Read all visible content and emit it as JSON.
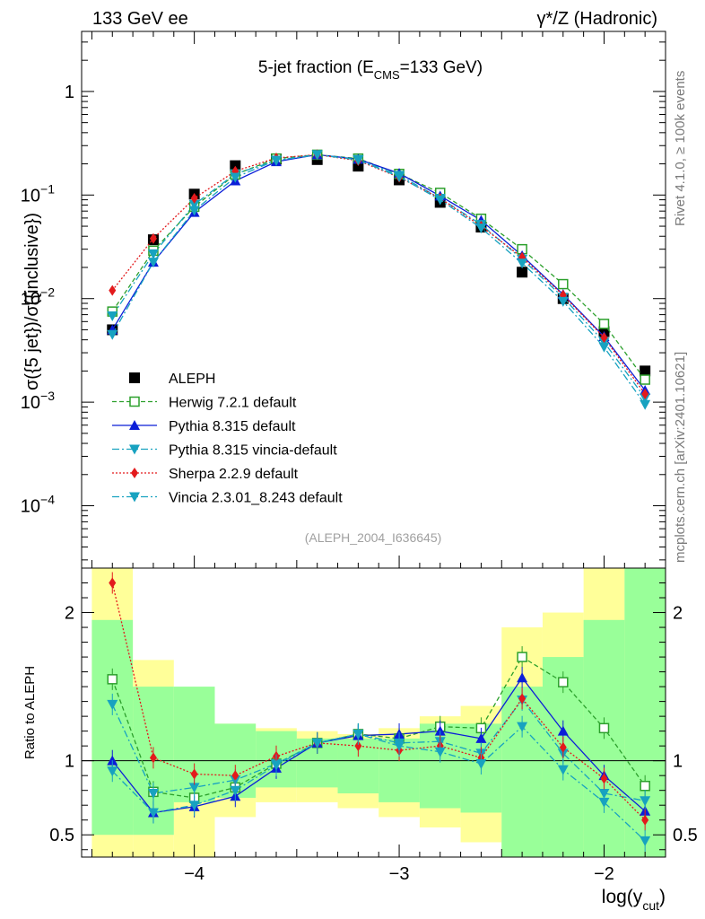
{
  "header": {
    "left": "133 GeV ee",
    "right": "γ*/Z (Hadronic)"
  },
  "side_labels": {
    "rivet": "Rivet 4.1.0, ≥ 100k events",
    "site": "mcplots.cern.ch [arXiv:2401.10621]"
  },
  "chart_data": {
    "type": "line",
    "title_prefix": "5-jet fraction (E",
    "title_sub": "CMS",
    "title_suffix": "=133 GeV)",
    "ylabel": "σ({5 jet})/σ({inclusive})",
    "ratio_ylabel": "Ratio to ALEPH",
    "xlabel_main": "log(y",
    "xlabel_sub": "cut",
    "xlabel_close": ")",
    "analysis_tag": "(ALEPH_2004_I636645)",
    "x": [
      -4.4,
      -4.2,
      -4.0,
      -3.8,
      -3.6,
      -3.4,
      -3.2,
      -3.0,
      -2.8,
      -2.6,
      -2.4,
      -2.2,
      -2.0,
      -1.8
    ],
    "x_bins": [
      -4.5,
      -4.3,
      -4.1,
      -3.9,
      -3.7,
      -3.5,
      -3.3,
      -3.1,
      -2.9,
      -2.7,
      -2.5,
      -2.3,
      -2.1,
      -1.9,
      -1.7
    ],
    "xlim": [
      -4.55,
      -1.7
    ],
    "xticks": [
      -4,
      -3,
      -2
    ],
    "xtick_labels": [
      "−4",
      "−3",
      "−2"
    ],
    "ylim_log": [
      2.5e-05,
      3.8
    ],
    "yticks": [
      {
        "value": 1,
        "base": "1",
        "exp": ""
      },
      {
        "value": 0.1,
        "base": "10",
        "exp": "−1"
      },
      {
        "value": 0.01,
        "base": "10",
        "exp": "−2"
      },
      {
        "value": 0.001,
        "base": "10",
        "exp": "−3"
      },
      {
        "value": 0.0001,
        "base": "10",
        "exp": "−4"
      }
    ],
    "ratio_ylim": [
      0.35,
      2.3
    ],
    "ratio_yticks": [
      0.5,
      1,
      2
    ],
    "ratio_ytick_labels": [
      "0.5",
      "1",
      "2"
    ],
    "data_series": {
      "name": "ALEPH",
      "values": [
        0.005,
        0.037,
        0.102,
        0.192,
        0.222,
        0.22,
        0.19,
        0.14,
        0.085,
        0.049,
        0.018,
        0.01,
        0.0048,
        0.002
      ]
    },
    "band_inner": [
      [
        0.5,
        1.95
      ],
      [
        0.5,
        1.5
      ],
      [
        0.72,
        1.5
      ],
      [
        0.75,
        1.25
      ],
      [
        0.82,
        1.2
      ],
      [
        0.82,
        1.15
      ],
      [
        0.78,
        1.15
      ],
      [
        0.72,
        1.15
      ],
      [
        0.68,
        1.25
      ],
      [
        0.65,
        1.25
      ],
      [
        0.35,
        1.5
      ],
      [
        0.35,
        1.7
      ],
      [
        0.35,
        1.95
      ],
      [
        0.35,
        2.3
      ]
    ],
    "band_outer": [
      [
        0.35,
        2.3
      ],
      [
        0.35,
        1.68
      ],
      [
        0.35,
        1.3
      ],
      [
        0.62,
        1.25
      ],
      [
        0.72,
        1.22
      ],
      [
        0.72,
        1.2
      ],
      [
        0.68,
        1.18
      ],
      [
        0.62,
        1.22
      ],
      [
        0.55,
        1.3
      ],
      [
        0.45,
        1.37
      ],
      [
        0.35,
        1.9
      ],
      [
        0.35,
        2.0
      ],
      [
        0.35,
        2.3
      ],
      [
        0.35,
        2.3
      ]
    ],
    "series": [
      {
        "name": "Herwig 7.2.1 default",
        "color": "#2ca02c",
        "dash": "5,3",
        "marker": "square-open",
        "values": [
          0.0075,
          0.029,
          0.077,
          0.158,
          0.225,
          0.245,
          0.225,
          0.16,
          0.105,
          0.059,
          0.03,
          0.0138,
          0.0057,
          0.00165
        ]
      },
      {
        "name": "Pythia 8.315 default",
        "color": "#0b1ed8",
        "dash": "",
        "marker": "triangle-up",
        "values": [
          0.005,
          0.0225,
          0.068,
          0.137,
          0.21,
          0.245,
          0.222,
          0.162,
          0.098,
          0.057,
          0.026,
          0.011,
          0.0043,
          0.0013
        ]
      },
      {
        "name": "Pythia 8.315 vincia-default",
        "color": "#17a2c0",
        "dash": "8,3,2,3",
        "marker": "triangle-down",
        "values": [
          0.0068,
          0.027,
          0.081,
          0.16,
          0.215,
          0.245,
          0.22,
          0.155,
          0.093,
          0.052,
          0.024,
          0.0103,
          0.0038,
          0.0011
        ]
      },
      {
        "name": "Sherpa 2.2.9 default",
        "color": "#e31a1c",
        "dash": "2,2",
        "marker": "diamond",
        "values": [
          0.012,
          0.038,
          0.093,
          0.17,
          0.228,
          0.245,
          0.215,
          0.148,
          0.093,
          0.05,
          0.025,
          0.0108,
          0.0042,
          0.0012
        ]
      },
      {
        "name": "Vincia 2.3.01_8.243 default",
        "color": "#17a2c0",
        "dash": "8,3,2,3",
        "marker": "triangle-down",
        "values": [
          0.0045,
          0.0225,
          0.071,
          0.148,
          0.217,
          0.245,
          0.218,
          0.15,
          0.09,
          0.048,
          0.022,
          0.0094,
          0.0034,
          0.00095
        ]
      }
    ],
    "ratio_series": [
      {
        "name": "Herwig 7.2.1 default",
        "values": [
          1.55,
          0.79,
          0.75,
          0.82,
          0.98,
          1.12,
          1.18,
          1.15,
          1.23,
          1.22,
          1.7,
          1.53,
          1.22,
          0.83
        ]
      },
      {
        "name": "Pythia 8.315 default",
        "values": [
          1.0,
          0.65,
          0.69,
          0.76,
          0.95,
          1.12,
          1.17,
          1.18,
          1.2,
          1.15,
          1.56,
          1.2,
          0.9,
          0.66
        ]
      },
      {
        "name": "Pythia 8.315 vincia-default",
        "values": [
          1.38,
          0.78,
          0.82,
          0.87,
          0.98,
          1.12,
          1.18,
          1.12,
          1.13,
          1.05,
          1.41,
          1.05,
          0.78,
          0.73
        ]
      },
      {
        "name": "Sherpa 2.2.9 default",
        "values": [
          2.2,
          1.02,
          0.91,
          0.9,
          1.03,
          1.12,
          1.1,
          1.07,
          1.1,
          1.02,
          1.42,
          1.09,
          0.88,
          0.6
        ]
      },
      {
        "name": "Vincia 2.3.01_8.243 default",
        "values": [
          0.93,
          0.65,
          0.7,
          0.8,
          0.97,
          1.12,
          1.18,
          1.1,
          1.06,
          0.98,
          1.23,
          0.94,
          0.72,
          0.46
        ]
      }
    ],
    "legend_position": "lower-left"
  }
}
